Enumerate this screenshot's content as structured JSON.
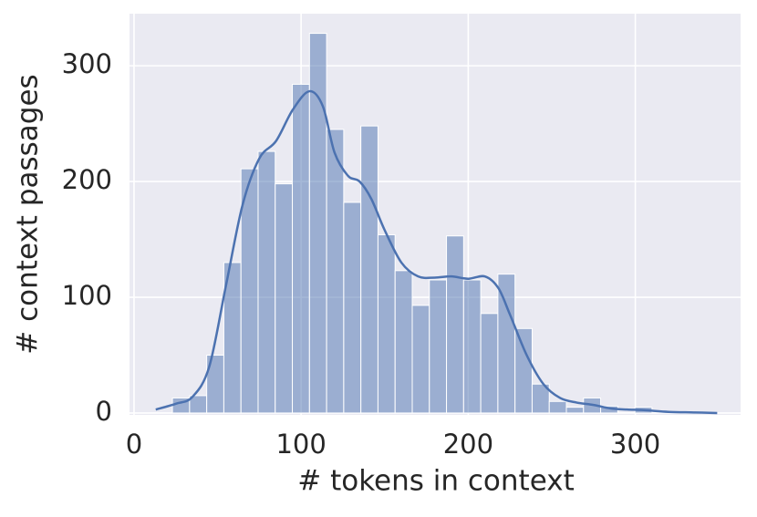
{
  "chart_data": {
    "type": "histogram",
    "xlabel": "# tokens in context",
    "ylabel": "# context passages",
    "bins": [
      23,
      33.25,
      43.5,
      53.75,
      64,
      74.25,
      84.5,
      94.75,
      105,
      115.25,
      125.5,
      135.75,
      146,
      156.25,
      166.5,
      176.75,
      187,
      197.25,
      207.5,
      217.75,
      228,
      238.25,
      248.5,
      258.75,
      269,
      279.25,
      289.5,
      299.75,
      310
    ],
    "counts": [
      13,
      15,
      50,
      130,
      211,
      226,
      198,
      284,
      328,
      245,
      182,
      248,
      154,
      123,
      93,
      115,
      153,
      115,
      86,
      120,
      73,
      25,
      10,
      5,
      13,
      6,
      0,
      5
    ],
    "color": "#4c72b0",
    "kde": {
      "x": [
        13,
        25,
        35,
        45,
        55,
        65,
        75,
        85,
        95,
        105,
        113,
        120,
        128,
        135,
        142,
        150,
        160,
        170,
        180,
        190,
        200,
        210,
        218,
        225,
        235,
        245,
        255,
        265,
        275,
        285,
        295,
        305,
        320,
        335,
        349
      ],
      "y": [
        3,
        8,
        14,
        40,
        110,
        180,
        220,
        235,
        262,
        278,
        265,
        225,
        205,
        200,
        185,
        158,
        130,
        118,
        117,
        118,
        116,
        118,
        108,
        85,
        50,
        25,
        13,
        9,
        7,
        4,
        3,
        2.5,
        1,
        0.5,
        0
      ]
    },
    "xlim": [
      -2.7,
      363
    ],
    "ylim": [
      -1.6,
      345
    ],
    "xticks": [
      0,
      100,
      200,
      300
    ],
    "yticks": [
      0,
      100,
      200,
      300
    ],
    "grid": true
  }
}
